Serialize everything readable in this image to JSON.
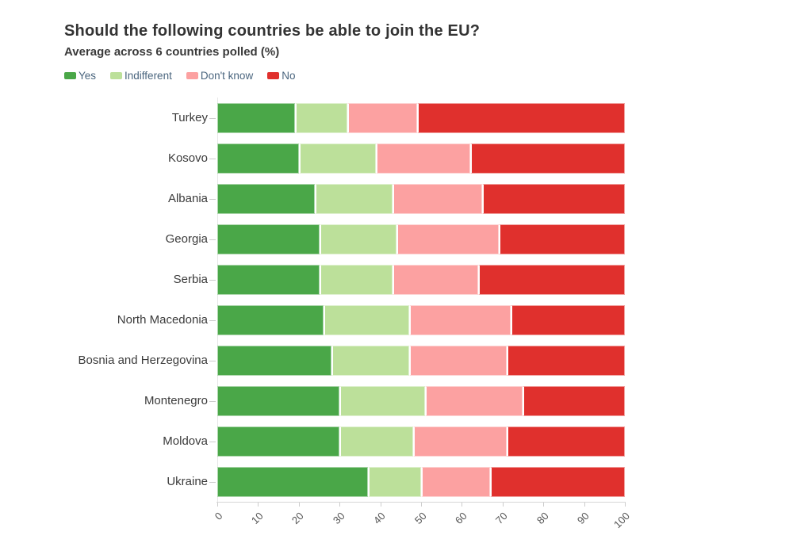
{
  "title": "Should the following countries be able to join the EU?",
  "subtitle": "Average across 6 countries polled (%)",
  "colors": {
    "yes": "#4aa748",
    "indifferent": "#bce09a",
    "dont_know": "#fca1a1",
    "no": "#e0302d",
    "axis_line": "#d6d6d6",
    "tick_text": "#555555",
    "legend_text": "#4a657e",
    "title_text": "#333333"
  },
  "chart_data": {
    "type": "bar",
    "orientation": "horizontal",
    "stacked": true,
    "title": "Should the following countries be able to join the EU?",
    "subtitle": "Average across 6 countries polled (%)",
    "xlabel": "",
    "ylabel": "",
    "xlim": [
      0,
      100
    ],
    "x_ticks": [
      0,
      10,
      20,
      30,
      40,
      50,
      60,
      70,
      80,
      90,
      100
    ],
    "grid": false,
    "legend_position": "top",
    "categories": [
      "Turkey",
      "Kosovo",
      "Albania",
      "Georgia",
      "Serbia",
      "North Macedonia",
      "Bosnia and Herzegovina",
      "Montenegro",
      "Moldova",
      "Ukraine"
    ],
    "series": [
      {
        "name": "Yes",
        "color": "#4aa748",
        "values": [
          19,
          20,
          24,
          25,
          25,
          26,
          28,
          30,
          30,
          37
        ]
      },
      {
        "name": "Indifferent",
        "color": "#bce09a",
        "values": [
          13,
          19,
          19,
          19,
          18,
          21,
          19,
          21,
          18,
          13
        ]
      },
      {
        "name": "Don't know",
        "color": "#fca1a1",
        "values": [
          17,
          23,
          22,
          25,
          21,
          25,
          24,
          24,
          23,
          17
        ]
      },
      {
        "name": "No",
        "color": "#e0302d",
        "values": [
          51,
          38,
          35,
          31,
          36,
          28,
          29,
          25,
          29,
          33
        ]
      }
    ]
  }
}
